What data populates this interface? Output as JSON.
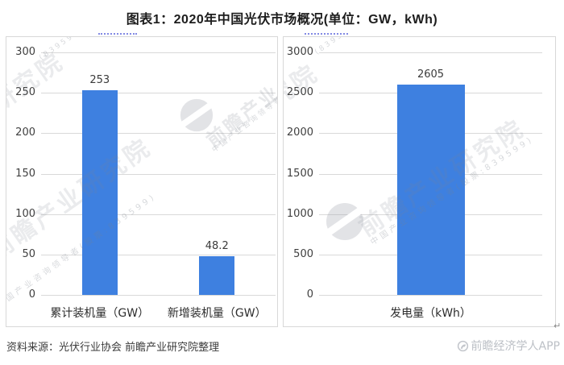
{
  "title": "图表1：2020年中国光伏市场概况(单位：GW，kWh)",
  "source_note": "资料来源：光伏行业协会 前瞻产业研究院整理",
  "brand_footer": "前瞻经济学人APP",
  "return_mark": "↵",
  "colors": {
    "bar": "#3E80E0",
    "grid": "#d9d9d9",
    "panel_border": "#d8d8d8",
    "tick_text": "#3f3f3f",
    "title_text": "#1d1d1d",
    "dotted_underline": "#8289e4",
    "watermark_gray": "#7a808c",
    "brand_gray": "#bcc0c6"
  },
  "watermarks": {
    "row_full": "前瞻产业研究院",
    "row_partial_left": "业研究院",
    "row_partial_right": "研究院",
    "stock_code": "(839599)",
    "slogan": "中国产业咨询领导者(股票:839599)",
    "slogan_short": "中国产业咨询领导者",
    "brand_short": "前瞻产业",
    "logo_icon": "qianzhan-circle-logo"
  },
  "chart_data": [
    {
      "type": "bar",
      "title": "",
      "categories": [
        "累计装机量（GW）",
        "新增装机量（GW）"
      ],
      "values": [
        253,
        48.2
      ],
      "value_labels": [
        "253",
        "48.2"
      ],
      "xlabel": "",
      "ylabel": "",
      "ylim": [
        0,
        300
      ],
      "yticks": [
        "300",
        "250",
        "200",
        "150",
        "100",
        "50",
        "0"
      ],
      "grid": true,
      "legend": "none",
      "bar_color": "#3E80E0"
    },
    {
      "type": "bar",
      "title": "",
      "categories": [
        "发电量（kWh）"
      ],
      "values": [
        2605
      ],
      "value_labels": [
        "2605"
      ],
      "xlabel": "",
      "ylabel": "",
      "ylim": [
        0,
        3000
      ],
      "yticks": [
        "3000",
        "2500",
        "2000",
        "1500",
        "1000",
        "500",
        "0"
      ],
      "grid": true,
      "legend": "none",
      "bar_color": "#3E80E0"
    }
  ]
}
